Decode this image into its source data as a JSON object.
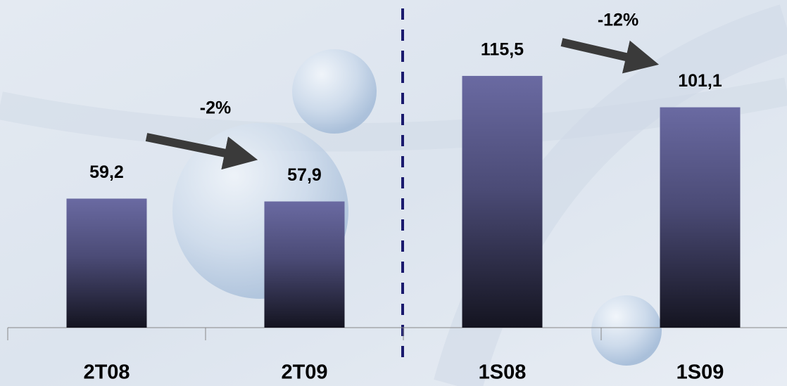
{
  "chart_data": {
    "type": "bar",
    "categories": [
      "2T08",
      "2T09",
      "1S08",
      "1S09"
    ],
    "values": [
      59.2,
      57.9,
      115.5,
      101.1
    ],
    "value_labels": [
      "59,2",
      "57,9",
      "115,5",
      "101,1"
    ],
    "annotations": [
      "-2%",
      "-12%"
    ],
    "ylim": [
      0,
      150
    ]
  }
}
